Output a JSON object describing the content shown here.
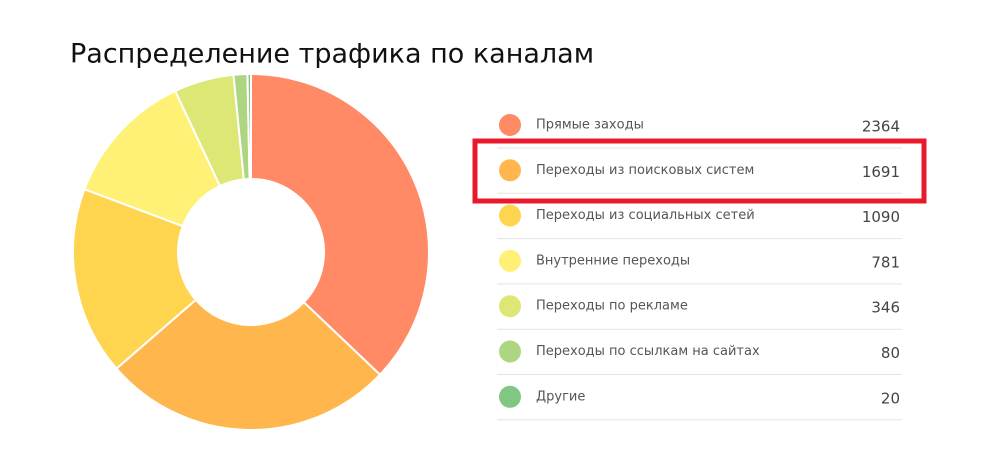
{
  "chart_data": {
    "type": "donut",
    "title": "Распределение трафика по каналам",
    "categories": [
      "Прямые заходы",
      "Переходы из поисковых систем",
      "Переходы из социальных сетей",
      "Внутренние переходы",
      "Переходы по рекламе",
      "Переходы по ссылкам на сайтах",
      "Другие"
    ],
    "values": [
      2364,
      1691,
      1090,
      781,
      346,
      80,
      20
    ],
    "colors": [
      "#ff8a65",
      "#ffb74d",
      "#ffd54f",
      "#fff176",
      "#dce775",
      "#aed581",
      "#81c784"
    ]
  }
}
